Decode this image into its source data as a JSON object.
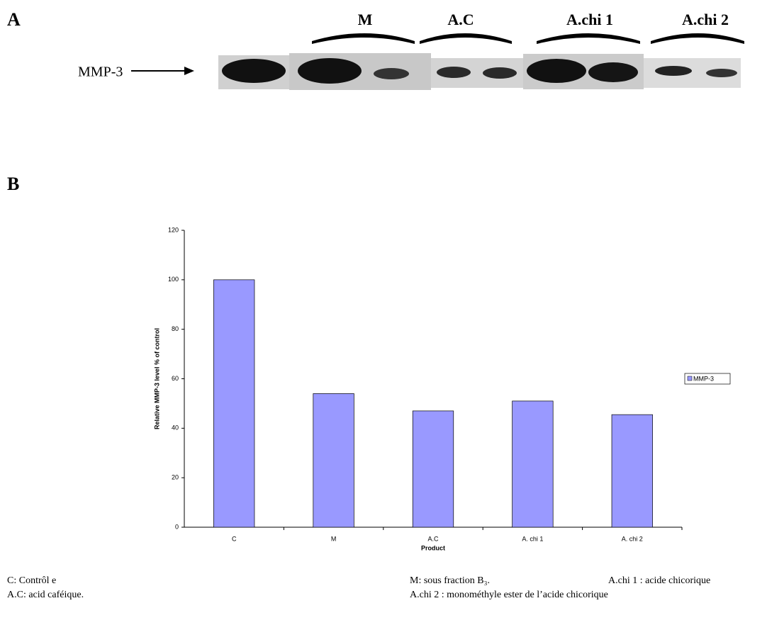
{
  "panel_a": {
    "label": "A",
    "lanes": [
      "M",
      "A.C",
      "A.chi 1",
      "A.chi 2"
    ],
    "marker": "MMP-3"
  },
  "panel_b": {
    "label": "B"
  },
  "chart_data": {
    "type": "bar",
    "categories": [
      "C",
      "M",
      "A.C",
      "A. chi 1",
      "A. chi 2"
    ],
    "series": [
      {
        "name": "MMP-3",
        "color": "#9999ff",
        "values": [
          100,
          54,
          47,
          51,
          45.5
        ]
      }
    ],
    "xlabel": "Product",
    "ylabel": "Relative MMP-3  level % of control",
    "ylim": [
      0,
      120
    ],
    "yticks": [
      0,
      20,
      40,
      60,
      80,
      100,
      120
    ],
    "grid": false,
    "legend": "right"
  },
  "footnotes": [
    "C: Contrôl e",
    "A.C: acid caféique.",
    "M: sous fraction B₃.",
    "A.chi 1 : acide chicorique",
    "A.chi 2 : monométhyle ester de l’acide chicorique"
  ]
}
